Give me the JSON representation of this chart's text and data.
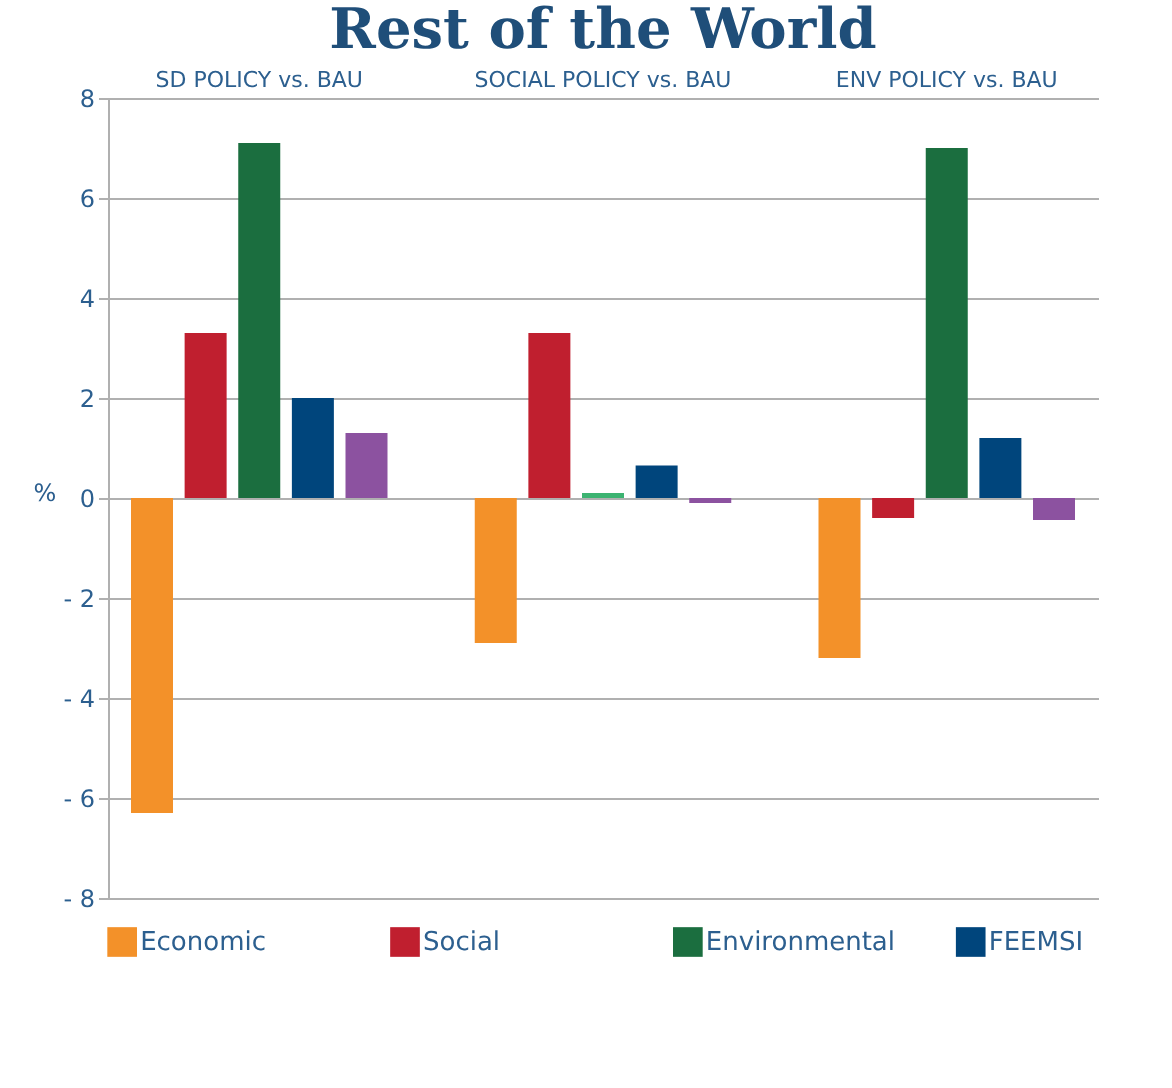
{
  "chart_data": {
    "type": "bar",
    "title": "Rest of the World",
    "ylabel": "%",
    "categories": [
      "SD POLICY vs. BAU",
      "SOCIAL POLICY vs. BAU",
      "ENV POLICY vs. BAU"
    ],
    "series": [
      {
        "name": "Economic",
        "color": "#f39129",
        "values": [
          -6.3,
          -2.9,
          -3.2
        ]
      },
      {
        "name": "Social",
        "color": "#c01f2f",
        "values": [
          3.3,
          3.3,
          -0.4
        ]
      },
      {
        "name": "Environmental",
        "color": "#1b6e3f",
        "colors": [
          "#1b6e3f",
          "#3cb371",
          "#1b6e3f"
        ],
        "values": [
          7.1,
          0.1,
          7.0
        ]
      },
      {
        "name": "FEEMSI",
        "color": "#00457c",
        "values": [
          2.0,
          0.65,
          1.2
        ]
      },
      {
        "color": "#8c52a0",
        "values": [
          1.3,
          -0.1,
          -0.44
        ]
      }
    ],
    "ylim": [
      -8,
      8
    ],
    "yticks": [
      {
        "value": -8,
        "label": "- 8"
      },
      {
        "value": -6,
        "label": "- 6"
      },
      {
        "value": -4,
        "label": "- 4"
      },
      {
        "value": -2,
        "label": "- 2"
      },
      0,
      2,
      4,
      6,
      8
    ],
    "grid": "y",
    "legend": "bottom"
  }
}
